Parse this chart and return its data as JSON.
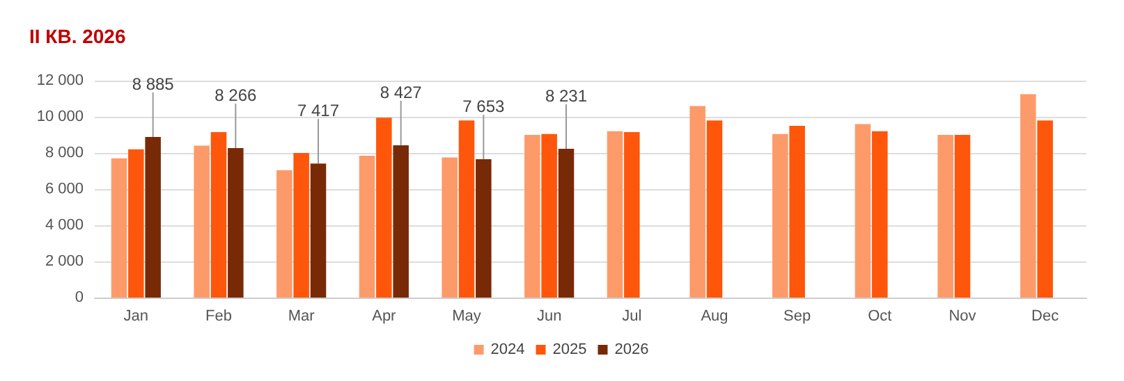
{
  "chart_data": {
    "type": "bar",
    "title": "II КВ. 2026",
    "categories": [
      "Jan",
      "Feb",
      "Mar",
      "Apr",
      "May",
      "Jun",
      "Jul",
      "Aug",
      "Sep",
      "Oct",
      "Nov",
      "Dec"
    ],
    "series": [
      {
        "name": "2024",
        "color": "#fd9a6a",
        "values": [
          7700,
          8400,
          7050,
          7850,
          7750,
          9000,
          9200,
          10600,
          9050,
          9600,
          9000,
          11250
        ]
      },
      {
        "name": "2025",
        "color": "#fe570b",
        "values": [
          8200,
          9150,
          8000,
          9950,
          9800,
          9050,
          9150,
          9800,
          9500,
          9200,
          9000,
          9800
        ]
      },
      {
        "name": "2026",
        "color": "#782a07",
        "values": [
          8885,
          8266,
          7417,
          8427,
          7653,
          8231,
          null,
          null,
          null,
          null,
          null,
          null
        ],
        "value_labels": [
          "8 885",
          "8 266",
          "7 417",
          "8 427",
          "7 653",
          "8 231",
          null,
          null,
          null,
          null,
          null,
          null
        ]
      }
    ],
    "ylim": [
      0,
      12000
    ],
    "yticks": [
      {
        "value": 0,
        "label": "0"
      },
      {
        "value": 2000,
        "label": "2 000"
      },
      {
        "value": 4000,
        "label": "4 000"
      },
      {
        "value": 6000,
        "label": "6 000"
      },
      {
        "value": 8000,
        "label": "8 000"
      },
      {
        "value": 10000,
        "label": "10 000"
      },
      {
        "value": 12000,
        "label": "12 000"
      }
    ],
    "grid": "y",
    "legend": "bottom"
  }
}
